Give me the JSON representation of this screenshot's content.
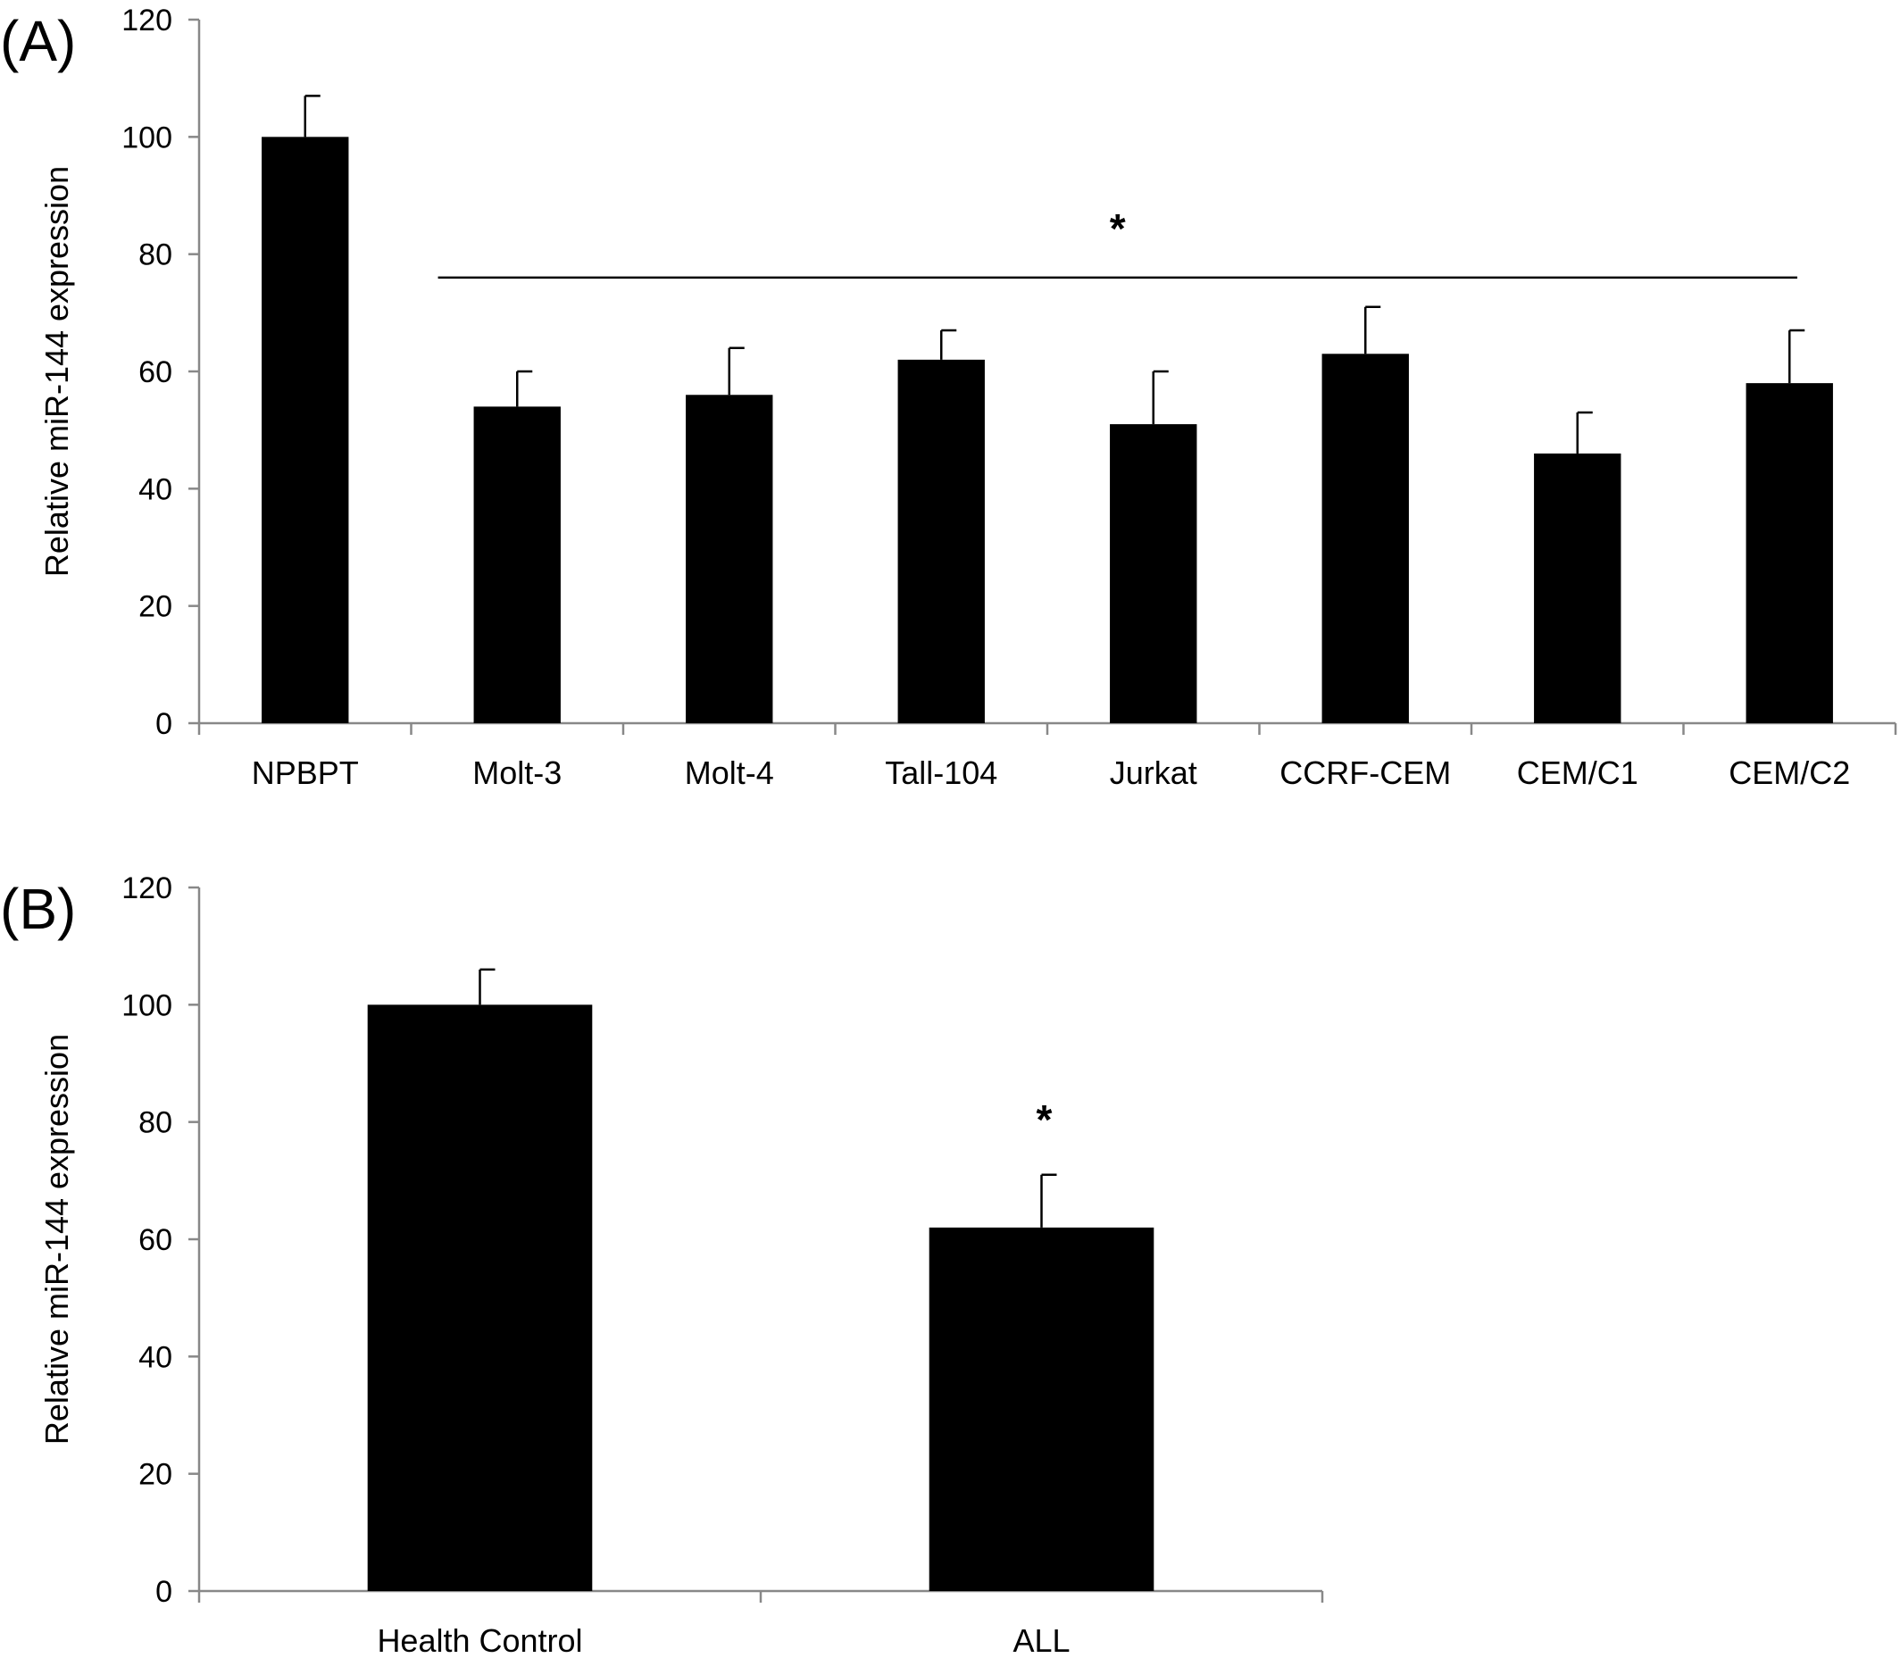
{
  "chart_data": [
    {
      "panel_label": "(A)",
      "type": "bar",
      "categories": [
        "NPBPT",
        "Molt-3",
        "Molt-4",
        "Tall-104",
        "Jurkat",
        "CCRF-CEM",
        "CEM/C1",
        "CEM/C2"
      ],
      "values": [
        100,
        54,
        56,
        62,
        51,
        63,
        46,
        58
      ],
      "errors": [
        7,
        6,
        8,
        5,
        9,
        8,
        7,
        9
      ],
      "ylabel": "Relative miR-144 expression",
      "ylim": [
        0,
        120
      ],
      "yticks": [
        0,
        20,
        40,
        60,
        80,
        100,
        120
      ],
      "significance": {
        "marker": "*",
        "from_category": "Molt-3",
        "to_category": "CEM/C2",
        "line_value": 76
      },
      "bar_color": "#000000",
      "grid": false,
      "legend": "none"
    },
    {
      "panel_label": "(B)",
      "type": "bar",
      "categories": [
        "Health Control",
        "ALL"
      ],
      "values": [
        100,
        62
      ],
      "errors": [
        6,
        9
      ],
      "ylabel": "Relative miR-144 expression",
      "ylim": [
        0,
        120
      ],
      "yticks": [
        0,
        20,
        40,
        60,
        80,
        100,
        120
      ],
      "significance": {
        "marker": "*",
        "on_category": "ALL"
      },
      "bar_color": "#000000",
      "grid": false,
      "legend": "none"
    }
  ]
}
